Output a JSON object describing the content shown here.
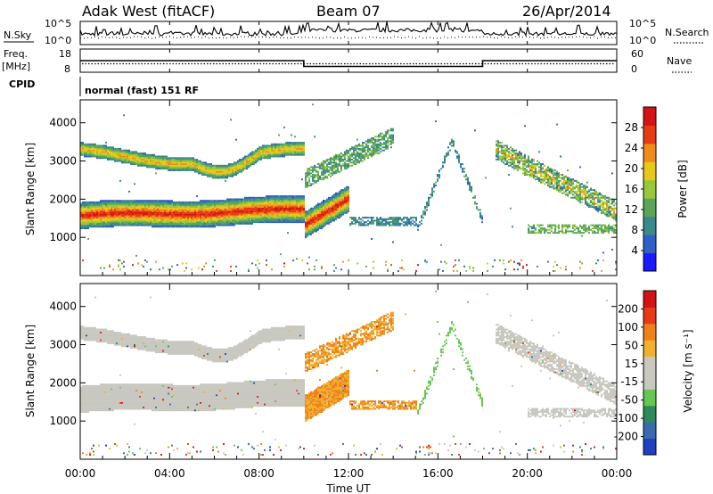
{
  "header": {
    "station": "Adak West (fitACF)",
    "beam": "Beam 07",
    "date": "26/Apr/2014"
  },
  "chart_data": [
    {
      "type": "line",
      "name": "noise-panel",
      "left_label": "N.Sky",
      "right_label": "N.Search",
      "left_ticks": [
        "10^5",
        "10^0"
      ],
      "right_ticks": [
        "10^5",
        "10^0"
      ]
    },
    {
      "type": "line",
      "name": "frequency-panel",
      "left_label": "Freq.",
      "left_unit": "[MHz]",
      "right_label": "Nave",
      "left_ticks": [
        18,
        8
      ],
      "right_ticks": [
        60,
        0
      ],
      "freq_steps": [
        {
          "from_h": 0,
          "to_h": 10,
          "value": 13
        },
        {
          "from_h": 10,
          "to_h": 18,
          "value": 10.5
        },
        {
          "from_h": 18,
          "to_h": 24,
          "value": 13
        }
      ],
      "nave_level": 22
    },
    {
      "type": "table",
      "name": "cpid-strip",
      "label": "CPID",
      "mode_text": "normal (fast) 151 RF"
    },
    {
      "type": "heatmap",
      "name": "power-panel",
      "ylabel": "Slant Range [km]",
      "ylim": [
        0,
        4600
      ],
      "yticks": [
        1000,
        2000,
        3000,
        4000
      ],
      "colorbar_label": "Power [dB]",
      "colorbar_ticks": [
        4,
        8,
        12,
        16,
        20,
        24,
        28
      ],
      "colorbar_range": [
        0,
        32
      ],
      "colorbar_colors": [
        "#1a1aff",
        "#2f5fc8",
        "#3a8a8a",
        "#5aa55a",
        "#96c83a",
        "#e8c81a",
        "#f08c1a",
        "#e83a14",
        "#d41414"
      ]
    },
    {
      "type": "heatmap",
      "name": "velocity-panel",
      "ylabel": "Slant Range [km]",
      "ylim": [
        0,
        4600
      ],
      "yticks": [
        1000,
        2000,
        3000,
        4000
      ],
      "colorbar_label": "Velocity [m s⁻¹]",
      "colorbar_ticks": [
        "200",
        "100",
        "50",
        "15",
        "-15",
        "-50",
        "-100",
        "-200"
      ],
      "colorbar_colors": [
        "#2040c0",
        "#3a6ab0",
        "#2e8a5a",
        "#64c850",
        "#c8c8c0",
        "#c8c8c0",
        "#f0b030",
        "#f08018",
        "#e83a14",
        "#d41414"
      ]
    }
  ],
  "x_axis": {
    "label": "Time UT",
    "xlim_hours": [
      0,
      24
    ],
    "ticks": [
      "00:00",
      "04:00",
      "08:00",
      "12:00",
      "16:00",
      "20:00",
      "00:00"
    ]
  }
}
